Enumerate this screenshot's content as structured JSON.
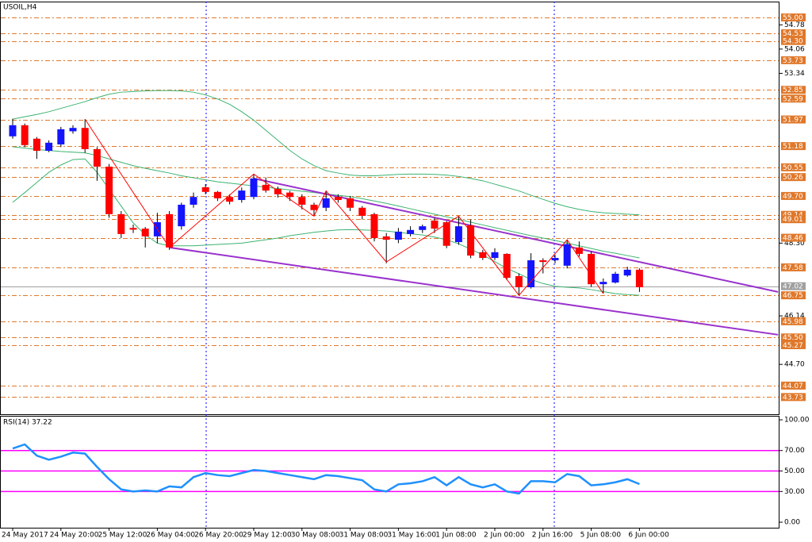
{
  "chart_data": [
    {
      "type": "candlestick",
      "title": "USOIL,H4",
      "categories": [
        "24 May 2017",
        null,
        null,
        null,
        "24 May 20:00",
        null,
        null,
        null,
        "25 May 12:00",
        null,
        null,
        null,
        "26 May 04:00",
        null,
        null,
        null,
        "26 May 20:00",
        null,
        null,
        null,
        "29 May 12:00",
        null,
        null,
        null,
        "30 May 08:00",
        null,
        null,
        null,
        "31 May 08:00",
        null,
        null,
        null,
        "31 May 16:00",
        null,
        null,
        null,
        "1 Jun 08:00",
        null,
        null,
        null,
        "2 Jun 00:00",
        null,
        null,
        null,
        "2 Jun 16:00",
        null,
        null,
        null,
        "5 Jun 08:00",
        null,
        null,
        null,
        "6 Jun 00:00"
      ],
      "open": [
        51.47,
        51.8,
        51.4,
        51.04,
        51.23,
        51.62,
        51.72,
        51.09,
        50.57,
        49.16,
        48.75,
        48.73,
        48.5,
        49.16,
        48.8,
        49.44,
        49.96,
        49.82,
        49.67,
        49.58,
        49.67,
        50.03,
        49.91,
        49.8,
        49.67,
        49.44,
        49.35,
        49.67,
        49.63,
        49.35,
        49.16,
        48.5,
        48.4,
        48.57,
        48.69,
        48.97,
        48.92,
        48.33,
        48.83,
        48.03,
        47.86,
        47.98,
        47.32,
        46.99,
        47.79,
        47.79,
        47.63,
        48.17,
        47.98,
        47.08,
        47.13,
        47.34,
        47.51
      ],
      "high": [
        51.99,
        51.85,
        51.45,
        51.35,
        51.75,
        51.8,
        51.98,
        51.15,
        50.65,
        49.25,
        48.85,
        48.78,
        49.2,
        49.25,
        49.5,
        49.8,
        50.05,
        49.85,
        49.75,
        49.95,
        50.35,
        50.25,
        49.98,
        49.85,
        49.75,
        49.5,
        49.85,
        49.75,
        49.7,
        49.4,
        49.2,
        48.6,
        48.75,
        48.8,
        48.85,
        49.05,
        48.95,
        49.1,
        49.0,
        48.1,
        48.15,
        48.0,
        47.4,
        48.0,
        47.85,
        47.95,
        48.4,
        48.35,
        48.05,
        47.25,
        47.45,
        47.6,
        47.55
      ],
      "low": [
        51.4,
        51.15,
        50.8,
        51.0,
        51.15,
        51.55,
        50.98,
        50.15,
        49.05,
        48.45,
        48.6,
        48.17,
        48.3,
        48.1,
        48.7,
        49.35,
        49.75,
        49.55,
        49.45,
        49.5,
        49.6,
        49.8,
        49.65,
        49.55,
        49.3,
        49.1,
        49.25,
        49.5,
        49.25,
        49.0,
        48.35,
        47.7,
        48.3,
        48.5,
        48.6,
        48.6,
        48.15,
        48.25,
        47.85,
        47.8,
        47.8,
        47.2,
        46.75,
        46.95,
        47.4,
        47.7,
        47.55,
        47.9,
        47.0,
        46.8,
        47.1,
        47.3,
        46.85
      ],
      "close": [
        51.8,
        51.21,
        51.04,
        51.28,
        51.68,
        51.72,
        51.09,
        50.57,
        49.16,
        48.57,
        48.7,
        48.5,
        48.92,
        48.17,
        49.44,
        49.67,
        49.82,
        49.63,
        49.53,
        49.86,
        50.22,
        49.86,
        49.75,
        49.67,
        49.44,
        49.28,
        49.63,
        49.58,
        49.35,
        49.11,
        48.45,
        48.4,
        48.64,
        48.69,
        48.8,
        48.73,
        48.22,
        48.8,
        47.93,
        47.86,
        48.03,
        47.27,
        46.99,
        47.79,
        47.74,
        47.86,
        48.27,
        47.98,
        47.08,
        47.15,
        47.39,
        47.51,
        46.99
      ],
      "up_color": "#1414ff",
      "down_color": "#ff0000",
      "ylim": [
        43.22,
        55.47
      ],
      "yticks": [
        54.78,
        54.06,
        53.34,
        {
          "value": 48.3,
          "label": "48.30"
        },
        46.14,
        {
          "value": 44.7,
          "label": "44.70"
        }
      ],
      "levels": {
        "color": "#e0782a",
        "values": [
          {
            "value": 55,
            "label": "55.00"
          },
          54.53,
          {
            "value": 54.3,
            "label": "54.30"
          },
          53.73,
          52.85,
          52.59,
          51.97,
          51.18,
          50.55,
          50.26,
          {
            "value": 49.7,
            "label": "49.70"
          },
          49.14,
          49.01,
          48.46,
          47.58,
          46.75,
          45.98,
          {
            "value": 45.5,
            "label": "45.50"
          },
          45.27,
          44.07,
          43.73
        ]
      },
      "current": {
        "value": 47.02,
        "color": "#a0a0a0"
      },
      "bands": {
        "color": "#3cb371",
        "upper": [
          51.98,
          52.05,
          52.12,
          52.2,
          52.3,
          52.4,
          52.5,
          52.62,
          52.72,
          52.78,
          52.8,
          52.82,
          52.83,
          52.83,
          52.82,
          52.78,
          52.7,
          52.58,
          52.42,
          52.2,
          51.95,
          51.65,
          51.35,
          51.05,
          50.8,
          50.6,
          50.45,
          50.38,
          50.32,
          50.3,
          50.3,
          50.32,
          50.34,
          50.35,
          50.35,
          50.34,
          50.32,
          50.28,
          50.22,
          50.15,
          50.05,
          49.95,
          49.85,
          49.72,
          49.6,
          49.48,
          49.38,
          49.3,
          49.24,
          49.2,
          49.18,
          49.16,
          49.14
        ],
        "middle": [
          51.16,
          51.12,
          51.08,
          51.05,
          51.02,
          51.0,
          50.98,
          50.9,
          50.8,
          50.7,
          50.6,
          50.52,
          50.45,
          50.38,
          50.3,
          50.24,
          50.18,
          50.12,
          50.08,
          50.04,
          50.0,
          49.96,
          49.92,
          49.88,
          49.84,
          49.8,
          49.76,
          49.72,
          49.68,
          49.62,
          49.55,
          49.48,
          49.4,
          49.32,
          49.24,
          49.16,
          49.08,
          49.0,
          48.92,
          48.84,
          48.76,
          48.68,
          48.6,
          48.52,
          48.45,
          48.38,
          48.3,
          48.22,
          48.14,
          48.06,
          48.0,
          47.93,
          47.86
        ],
        "lower": [
          49.51,
          49.8,
          50.1,
          50.4,
          50.62,
          50.78,
          50.8,
          50.4,
          49.9,
          49.4,
          48.9,
          48.55,
          48.3,
          48.22,
          48.22,
          48.22,
          48.24,
          48.26,
          48.28,
          48.3,
          48.35,
          48.4,
          48.45,
          48.52,
          48.57,
          48.62,
          48.66,
          48.69,
          48.7,
          48.69,
          48.68,
          48.66,
          48.62,
          48.58,
          48.54,
          48.48,
          48.4,
          48.28,
          48.12,
          47.95,
          47.75,
          47.55,
          47.39,
          47.22,
          47.1,
          47.02,
          46.99,
          46.97,
          46.92,
          46.86,
          46.8,
          46.77,
          46.75
        ]
      },
      "zigzag": {
        "color": "#ff0000",
        "x": [
          6,
          13,
          20,
          25,
          26,
          31,
          37,
          42,
          46,
          49
        ],
        "y": [
          51.98,
          48.17,
          50.35,
          49.1,
          49.85,
          47.74,
          49.1,
          46.75,
          48.4,
          46.8
        ]
      },
      "channel": {
        "color": "#9932cc",
        "lines": [
          {
            "x": [
              20,
              63.5
            ],
            "y": [
              50.22,
              46.85
            ]
          },
          {
            "x": [
              13,
              63.5
            ],
            "y": [
              48.17,
              45.58
            ]
          }
        ]
      }
    },
    {
      "type": "line",
      "title": "RSI(14) 37.22",
      "values": [
        72,
        76,
        65,
        61,
        64,
        68,
        67,
        54,
        42,
        32,
        30,
        31,
        30,
        35,
        34,
        44,
        48,
        46,
        45,
        48,
        51,
        50,
        48,
        46,
        44,
        42,
        46,
        45,
        43,
        41,
        32,
        30,
        37,
        38,
        40,
        44,
        36,
        44,
        37,
        34,
        37,
        30,
        28,
        40,
        40,
        39,
        47,
        45,
        36,
        37,
        39,
        42,
        37.22
      ],
      "color": "#1e90ff",
      "ylim": [
        -5.4,
        103.9
      ],
      "yticks": [
        {
          "value": 100,
          "label": "100.00"
        },
        {
          "value": 70,
          "label": "70.00"
        },
        {
          "value": 50,
          "label": "50.00"
        },
        {
          "value": 30,
          "label": "30.00"
        },
        {
          "value": 0,
          "label": "0.00"
        }
      ],
      "levels": [
        30,
        50,
        70
      ],
      "level_color": "#ff00ff"
    }
  ]
}
